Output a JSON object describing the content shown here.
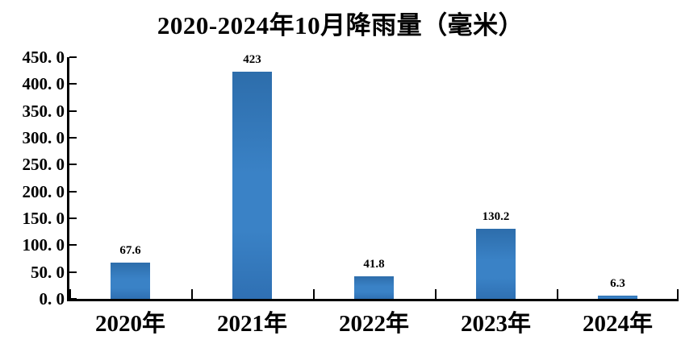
{
  "chart_data": {
    "type": "bar",
    "title": "2020-2024年10月降雨量（毫米）",
    "categories": [
      "2020年",
      "2021年",
      "2022年",
      "2023年",
      "2024年"
    ],
    "values": [
      67.6,
      423,
      41.8,
      130.2,
      6.3
    ],
    "data_labels": [
      "67.6",
      "423",
      "41.8",
      "130.2",
      "6.3"
    ],
    "xlabel": "",
    "ylabel": "",
    "ylim": [
      0,
      450
    ],
    "y_tick_step": 50,
    "y_tick_labels": [
      "0. 0",
      "50. 0",
      "100. 0",
      "150. 0",
      "200. 0",
      "250. 0",
      "300. 0",
      "350. 0",
      "400. 0",
      "450. 0"
    ],
    "grid": false,
    "legend_position": "none",
    "colors": {
      "bar_top": "#2d6dab",
      "bar_mid": "#3a82c6",
      "bar_bottom": "#2f70b3",
      "axis": "#000000",
      "text": "#000000",
      "background": "#ffffff"
    }
  }
}
